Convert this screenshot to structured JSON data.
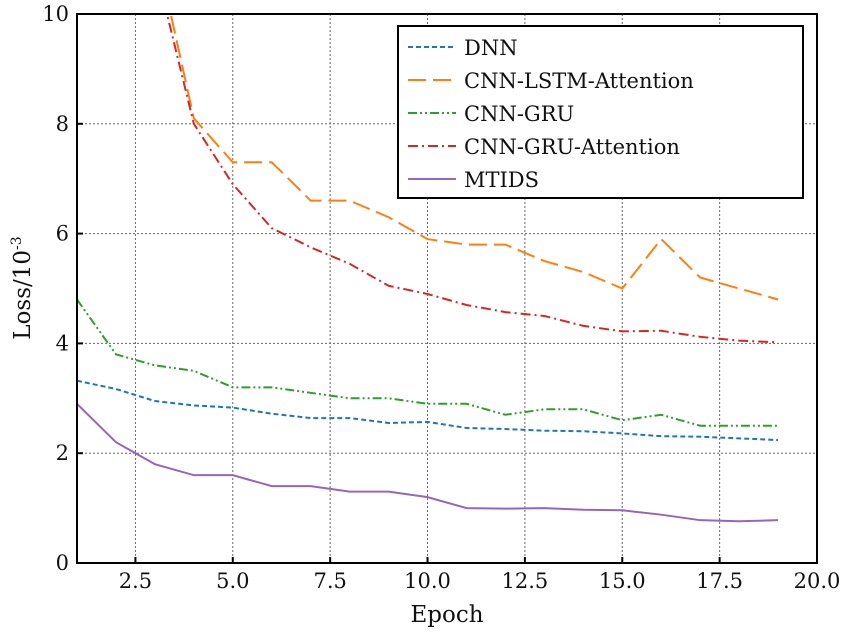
{
  "chart_data": {
    "type": "line",
    "title": "",
    "xlabel": "Epoch",
    "ylabel": "Loss/10",
    "ylabel_exponent": "-3",
    "xlim": [
      1,
      20
    ],
    "ylim": [
      0,
      10
    ],
    "xticks": [
      "2.5",
      "5.0",
      "7.5",
      "10.0",
      "12.5",
      "15.0",
      "17.5",
      "20.0"
    ],
    "xtick_values": [
      2.5,
      5,
      7.5,
      10,
      12.5,
      15,
      17.5,
      20
    ],
    "yticks": [
      "0",
      "2",
      "4",
      "6",
      "8",
      "10"
    ],
    "ytick_values": [
      0,
      2,
      4,
      6,
      8,
      10
    ],
    "grid": true,
    "legend_position": "top-right",
    "series": [
      {
        "name": "DNN",
        "color": "#1f77b4",
        "dash": "5,3",
        "x": [
          1,
          2,
          3,
          4,
          5,
          6,
          7,
          8,
          9,
          10,
          11,
          12,
          13,
          14,
          15,
          16,
          17,
          18,
          19
        ],
        "values": [
          3.32,
          3.17,
          2.95,
          2.87,
          2.83,
          2.72,
          2.64,
          2.64,
          2.55,
          2.57,
          2.46,
          2.44,
          2.41,
          2.4,
          2.36,
          2.31,
          2.3,
          2.27,
          2.24
        ]
      },
      {
        "name": "CNN-LSTM-Attention",
        "color": "#ff7f0e",
        "dash": "18,7",
        "x": [
          3,
          4,
          5,
          6,
          7,
          8,
          9,
          10,
          11,
          12,
          13,
          14,
          15,
          16,
          17,
          18,
          19
        ],
        "values": [
          11.3,
          8.1,
          7.3,
          7.3,
          6.6,
          6.6,
          6.3,
          5.9,
          5.8,
          5.8,
          5.5,
          5.3,
          5.0,
          5.9,
          5.2,
          5.0,
          4.8
        ]
      },
      {
        "name": "CNN-GRU",
        "color": "#2ca02c",
        "dash": "9,3,2,3,2,3",
        "x": [
          1,
          2,
          3,
          4,
          5,
          6,
          7,
          8,
          9,
          10,
          11,
          12,
          13,
          14,
          15,
          16,
          17,
          18,
          19
        ],
        "values": [
          4.8,
          3.8,
          3.6,
          3.5,
          3.2,
          3.2,
          3.1,
          3.0,
          3.0,
          2.9,
          2.9,
          2.7,
          2.8,
          2.8,
          2.6,
          2.7,
          2.5,
          2.5,
          2.5
        ]
      },
      {
        "name": "CNN-GRU-Attention",
        "color": "#d62728",
        "dash": "10,4,2,4",
        "x": [
          3,
          4,
          5,
          6,
          7,
          8,
          9,
          10,
          11,
          12,
          13,
          14,
          15,
          16,
          17,
          18,
          19
        ],
        "values": [
          10.9,
          8.0,
          6.9,
          6.1,
          5.75,
          5.45,
          5.05,
          4.9,
          4.7,
          4.57,
          4.5,
          4.32,
          4.22,
          4.23,
          4.12,
          4.05,
          4.02
        ]
      },
      {
        "name": "MTIDS",
        "color": "#9467bd",
        "dash": "",
        "x": [
          1,
          2,
          3,
          4,
          5,
          6,
          7,
          8,
          9,
          10,
          11,
          12,
          13,
          14,
          15,
          16,
          17,
          18,
          19
        ],
        "values": [
          2.9,
          2.2,
          1.8,
          1.6,
          1.6,
          1.4,
          1.4,
          1.3,
          1.3,
          1.2,
          1.0,
          0.99,
          1.0,
          0.97,
          0.96,
          0.88,
          0.78,
          0.76,
          0.78
        ]
      }
    ]
  }
}
